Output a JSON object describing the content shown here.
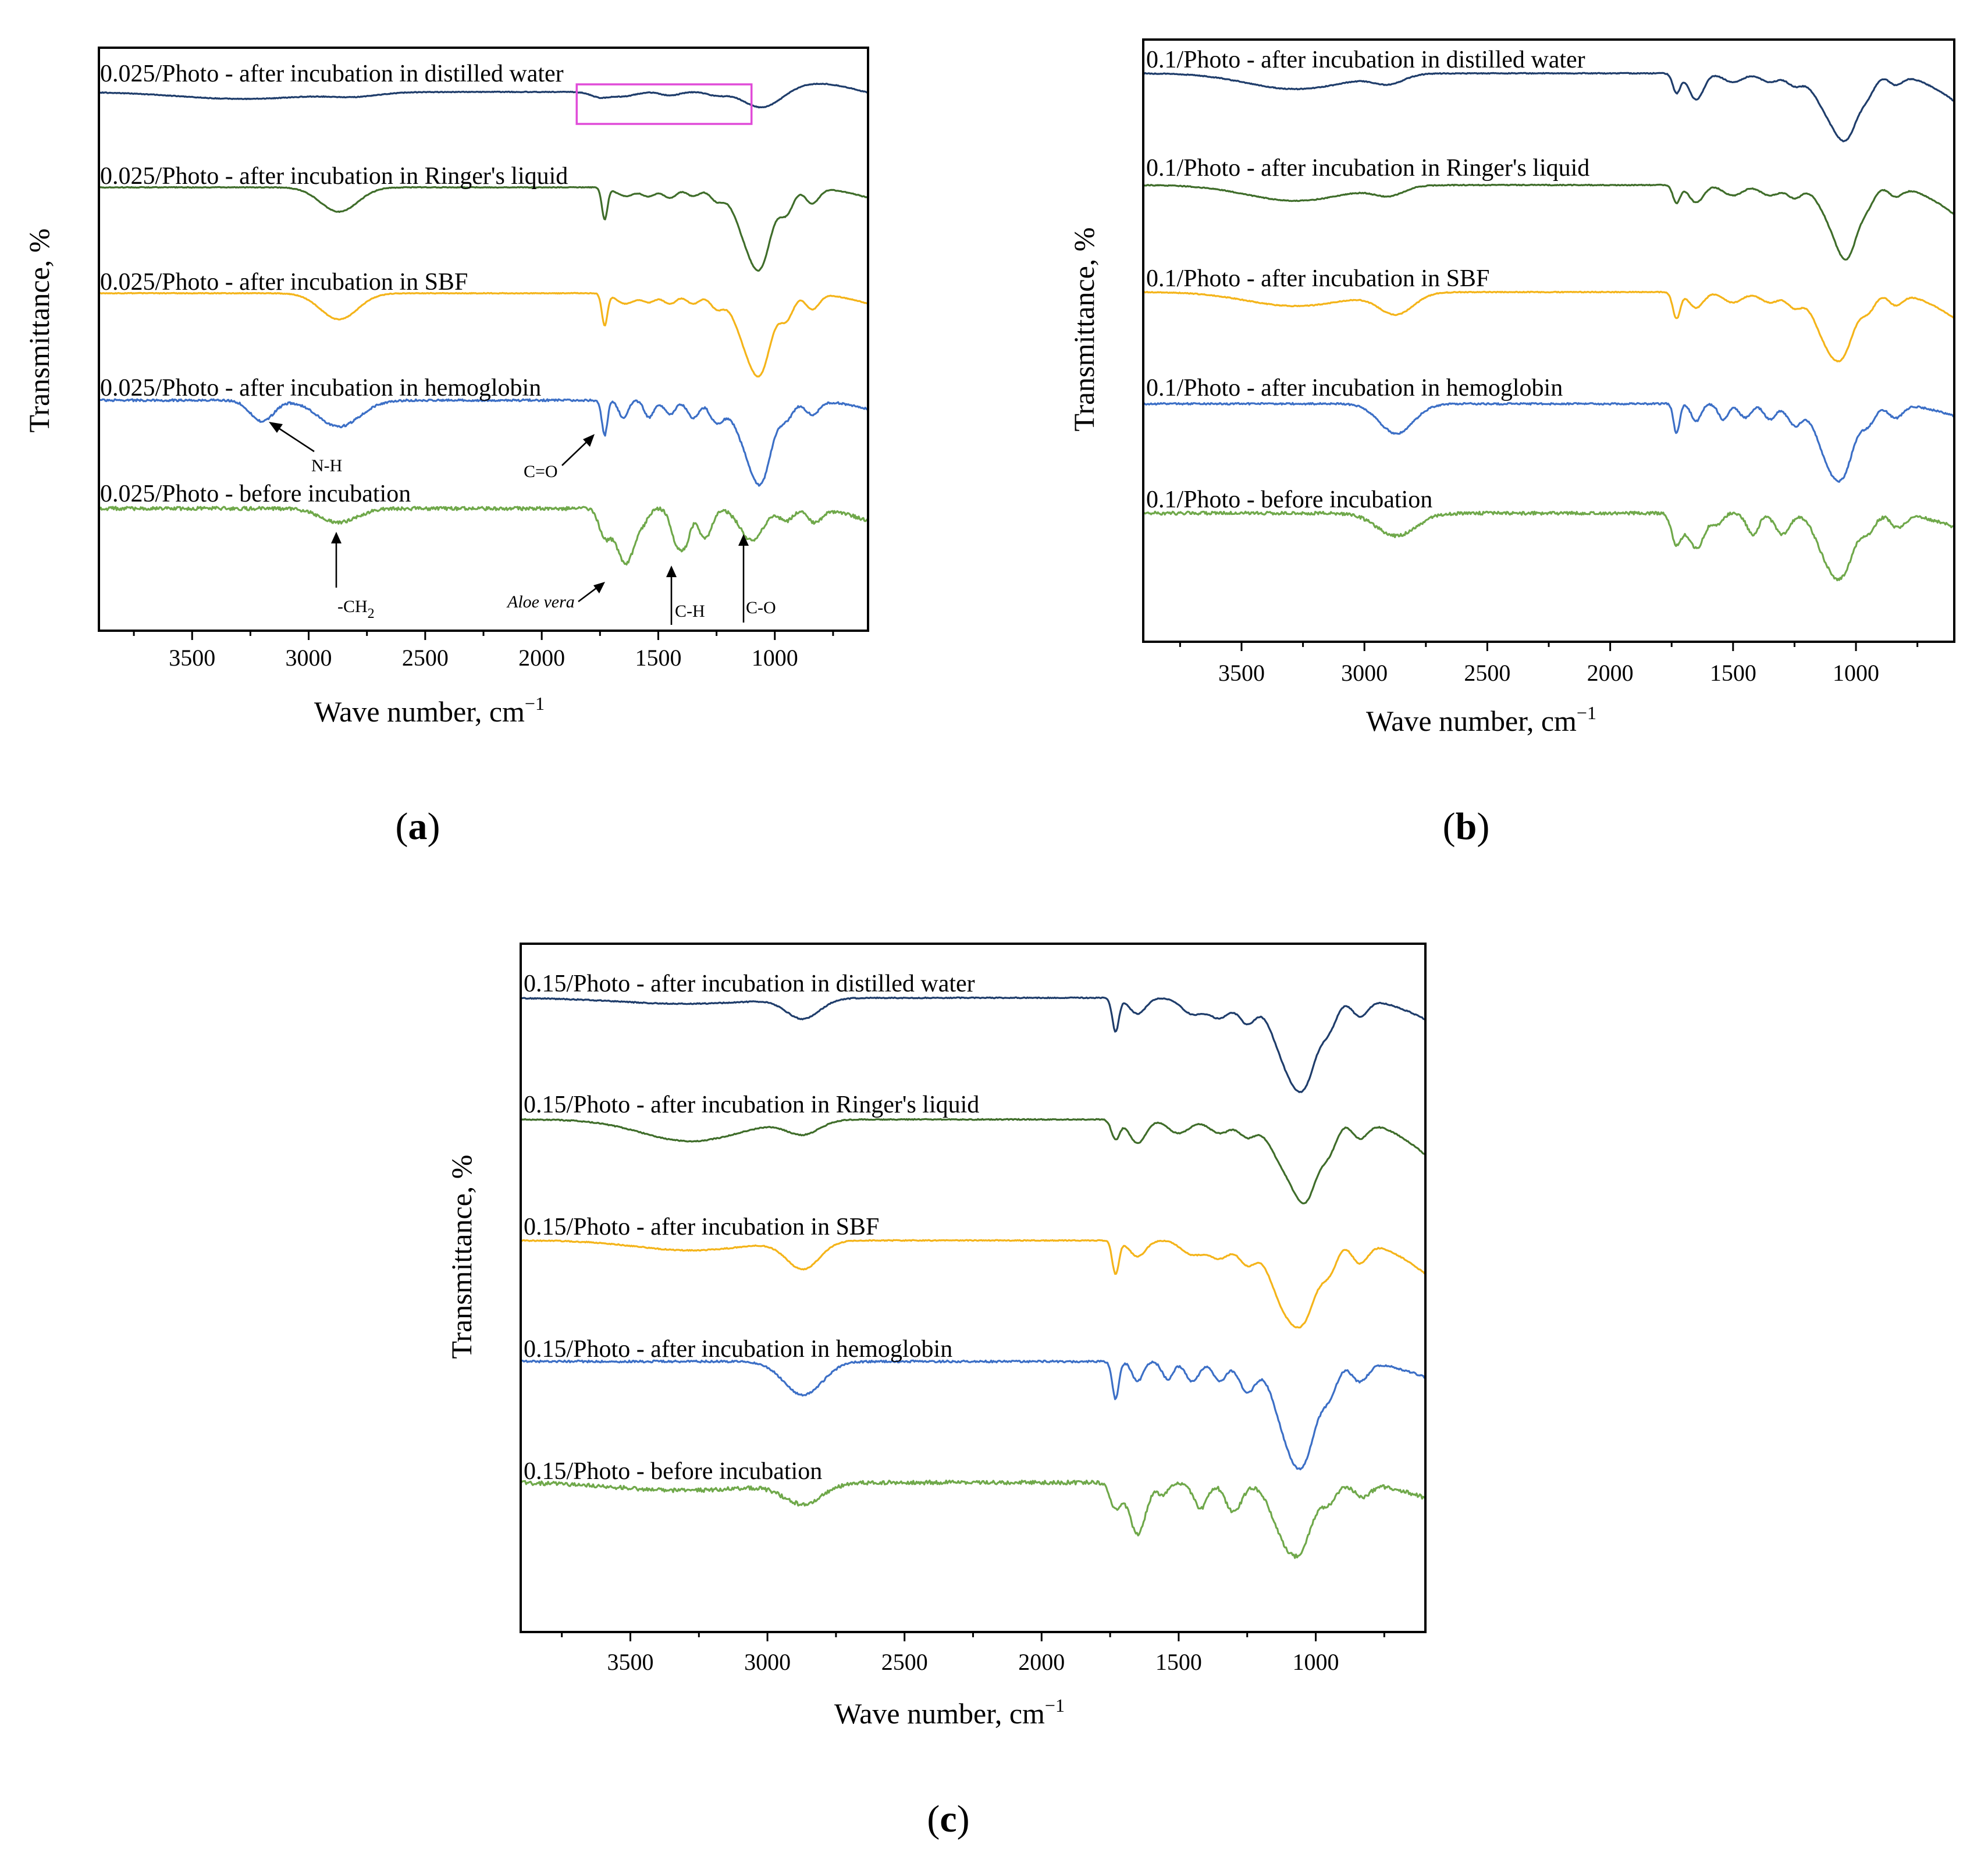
{
  "colors": {
    "distilled_water": "#1f3d6b",
    "ringer": "#3f6d2a",
    "sbf": "#f4b41a",
    "hemoglobin": "#3c6fc6",
    "before": "#6fa84a",
    "highlight": "#e04bd8"
  },
  "chart_data": [
    {
      "id": "a",
      "type": "line",
      "panel_label": {
        "open": "(",
        "letter": "a",
        "close": ")"
      },
      "xlabel": {
        "main": "Wave number, cm",
        "sup": "−1"
      },
      "ylabel": "Transmittance, %",
      "xlim": [
        3900,
        600
      ],
      "x_reversed": true,
      "ticks": [
        3500,
        3000,
        2500,
        2000,
        1500,
        1000
      ],
      "tick_labels": [
        "3500",
        "3000",
        "2500",
        "2000",
        "1500",
        "1000"
      ],
      "highlight_region_cm": [
        1850,
        1100
      ],
      "series": [
        {
          "name": "0.025/Photo - after incubation in distilled water",
          "color_key": "distilled_water",
          "baseline": 0.0,
          "features": [
            [
              3280,
              0.08,
              280
            ],
            [
              2800,
              0.04,
              100
            ],
            [
              1750,
              0.06,
              40
            ],
            [
              1650,
              0.05,
              50
            ],
            [
              1450,
              0.04,
              40
            ],
            [
              1250,
              0.04,
              40
            ],
            [
              1050,
              0.2,
              80
            ],
            [
              800,
              -0.1,
              150
            ]
          ],
          "edge_drop": 0.05,
          "noise": 0.004
        },
        {
          "name": "0.025/Photo - after incubation in Ringer's liquid",
          "color_key": "ringer",
          "baseline": 0.0,
          "features": [
            [
              2870,
              0.28,
              80
            ],
            [
              1730,
              0.36,
              12
            ],
            [
              1640,
              0.1,
              40
            ],
            [
              1540,
              0.1,
              30
            ],
            [
              1450,
              0.12,
              30
            ],
            [
              1350,
              0.1,
              30
            ],
            [
              1250,
              0.14,
              30
            ],
            [
              1100,
              0.68,
              60
            ],
            [
              1050,
              0.4,
              40
            ],
            [
              950,
              0.28,
              30
            ],
            [
              840,
              0.18,
              30
            ]
          ],
          "edge_drop": 0.12,
          "noise": 0.004
        },
        {
          "name": "0.025/Photo - after incubation in SBF",
          "color_key": "sbf",
          "baseline": 0.0,
          "features": [
            [
              2870,
              0.3,
              80
            ],
            [
              1730,
              0.36,
              12
            ],
            [
              1640,
              0.12,
              40
            ],
            [
              1540,
              0.1,
              30
            ],
            [
              1450,
              0.12,
              30
            ],
            [
              1350,
              0.12,
              30
            ],
            [
              1250,
              0.16,
              30
            ],
            [
              1100,
              0.68,
              60
            ],
            [
              1050,
              0.4,
              40
            ],
            [
              950,
              0.28,
              30
            ],
            [
              840,
              0.18,
              30
            ]
          ],
          "edge_drop": 0.12,
          "noise": 0.004
        },
        {
          "name": "0.025/Photo - after incubation in hemoglobin",
          "color_key": "hemoglobin",
          "baseline": 0.0,
          "features": [
            [
              3200,
              0.24,
              50
            ],
            [
              2870,
              0.3,
              90
            ],
            [
              1730,
              0.4,
              12
            ],
            [
              1650,
              0.2,
              20
            ],
            [
              1540,
              0.2,
              20
            ],
            [
              1450,
              0.16,
              25
            ],
            [
              1350,
              0.2,
              25
            ],
            [
              1250,
              0.24,
              30
            ],
            [
              1100,
              0.6,
              60
            ],
            [
              1050,
              0.5,
              40
            ],
            [
              950,
              0.2,
              30
            ],
            [
              840,
              0.16,
              30
            ]
          ],
          "edge_drop": 0.1,
          "noise": 0.012
        },
        {
          "name": "0.025/Photo - before incubation",
          "color_key": "before",
          "baseline": 0.0,
          "features": [
            [
              2870,
              0.16,
              80
            ],
            [
              1730,
              0.3,
              25
            ],
            [
              1640,
              0.64,
              40
            ],
            [
              1560,
              0.1,
              20
            ],
            [
              1420,
              0.4,
              25
            ],
            [
              1380,
              0.3,
              20
            ],
            [
              1300,
              0.34,
              30
            ],
            [
              1100,
              0.36,
              50
            ],
            [
              950,
              0.14,
              30
            ],
            [
              830,
              0.16,
              30
            ]
          ],
          "edge_drop": 0.14,
          "noise": 0.02
        }
      ],
      "annotations": [
        {
          "label": "N-H",
          "sub": ""
        },
        {
          "label": "C=O",
          "sub": ""
        },
        {
          "label": "-CH",
          "sub": "2"
        },
        {
          "label": "Aloe vera",
          "sub": ""
        },
        {
          "label": "C-H",
          "sub": ""
        },
        {
          "label": "C-O",
          "sub": ""
        }
      ]
    },
    {
      "id": "b",
      "type": "line",
      "panel_label": {
        "open": "(",
        "letter": "b",
        "close": ")"
      },
      "xlabel": {
        "main": "Wave number, cm",
        "sup": "−1"
      },
      "ylabel": "Transmittance, %",
      "xlim": [
        3900,
        600
      ],
      "x_reversed": true,
      "ticks": [
        3500,
        3000,
        2500,
        2000,
        1500,
        1000
      ],
      "tick_labels": [
        "3500",
        "3000",
        "2500",
        "2000",
        "1500",
        "1000"
      ],
      "series": [
        {
          "name": "0.1/Photo - after incubation in distilled water",
          "color_key": "distilled_water",
          "baseline": 0.0,
          "features": [
            [
              3280,
              0.18,
              200
            ],
            [
              2900,
              0.1,
              60
            ],
            [
              1730,
              0.22,
              15
            ],
            [
              1650,
              0.3,
              30
            ],
            [
              1500,
              0.1,
              40
            ],
            [
              1350,
              0.1,
              40
            ],
            [
              1250,
              0.12,
              30
            ],
            [
              1080,
              0.56,
              70
            ],
            [
              1030,
              0.3,
              40
            ],
            [
              950,
              0.16,
              30
            ],
            [
              840,
              0.12,
              30
            ]
          ],
          "edge_drop": 0.32,
          "noise": 0.005
        },
        {
          "name": "0.1/Photo - after incubation in Ringer's liquid",
          "color_key": "ringer",
          "baseline": 0.0,
          "features": [
            [
              3280,
              0.18,
              200
            ],
            [
              2900,
              0.1,
              60
            ],
            [
              1730,
              0.2,
              15
            ],
            [
              1650,
              0.2,
              30
            ],
            [
              1500,
              0.12,
              40
            ],
            [
              1350,
              0.12,
              40
            ],
            [
              1250,
              0.14,
              30
            ],
            [
              1080,
              0.46,
              60
            ],
            [
              1030,
              0.5,
              40
            ],
            [
              950,
              0.18,
              30
            ],
            [
              840,
              0.12,
              30
            ]
          ],
          "edge_drop": 0.34,
          "noise": 0.005
        },
        {
          "name": "0.1/Photo - after incubation in SBF",
          "color_key": "sbf",
          "baseline": 0.0,
          "features": [
            [
              3280,
              0.16,
              200
            ],
            [
              2870,
              0.24,
              70
            ],
            [
              1730,
              0.3,
              15
            ],
            [
              1650,
              0.18,
              30
            ],
            [
              1500,
              0.12,
              40
            ],
            [
              1350,
              0.12,
              40
            ],
            [
              1250,
              0.16,
              30
            ],
            [
              1100,
              0.64,
              60
            ],
            [
              1040,
              0.3,
              40
            ],
            [
              950,
              0.2,
              30
            ],
            [
              840,
              0.14,
              30
            ]
          ],
          "edge_drop": 0.3,
          "noise": 0.005
        },
        {
          "name": "0.1/Photo - after incubation in hemoglobin",
          "color_key": "hemoglobin",
          "baseline": 0.0,
          "features": [
            [
              2870,
              0.34,
              70
            ],
            [
              1730,
              0.34,
              12
            ],
            [
              1650,
              0.2,
              20
            ],
            [
              1540,
              0.18,
              20
            ],
            [
              1450,
              0.16,
              25
            ],
            [
              1350,
              0.18,
              25
            ],
            [
              1250,
              0.24,
              30
            ],
            [
              1100,
              0.68,
              55
            ],
            [
              1040,
              0.4,
              40
            ],
            [
              950,
              0.22,
              30
            ],
            [
              840,
              0.16,
              30
            ]
          ],
          "edge_drop": 0.14,
          "noise": 0.01
        },
        {
          "name": "0.1/Photo - before incubation",
          "color_key": "before",
          "baseline": 0.0,
          "features": [
            [
              2870,
              0.26,
              80
            ],
            [
              1730,
              0.34,
              20
            ],
            [
              1650,
              0.4,
              35
            ],
            [
              1560,
              0.12,
              20
            ],
            [
              1420,
              0.24,
              25
            ],
            [
              1300,
              0.24,
              30
            ],
            [
              1100,
              0.58,
              55
            ],
            [
              1040,
              0.34,
              40
            ],
            [
              950,
              0.2,
              30
            ],
            [
              830,
              0.16,
              30
            ]
          ],
          "edge_drop": 0.16,
          "noise": 0.018
        }
      ]
    },
    {
      "id": "c",
      "type": "line",
      "panel_label": {
        "open": "(",
        "letter": "c",
        "close": ")"
      },
      "xlabel": {
        "main": "Wave number, cm",
        "sup": "−1"
      },
      "ylabel": "Transmittance, %",
      "xlim": [
        3900,
        600
      ],
      "x_reversed": true,
      "ticks": [
        3500,
        3000,
        2500,
        2000,
        1500,
        1000
      ],
      "tick_labels": [
        "3500",
        "3000",
        "2500",
        "2000",
        "1500",
        "1000"
      ],
      "series": [
        {
          "name": "0.15/Photo - after incubation in distilled water",
          "color_key": "distilled_water",
          "baseline": 0.0,
          "features": [
            [
              3300,
              0.06,
              250
            ],
            [
              2870,
              0.2,
              60
            ],
            [
              1730,
              0.34,
              12
            ],
            [
              1650,
              0.16,
              30
            ],
            [
              1450,
              0.16,
              40
            ],
            [
              1350,
              0.2,
              40
            ],
            [
              1250,
              0.24,
              30
            ],
            [
              1090,
              0.72,
              60
            ],
            [
              1030,
              0.42,
              40
            ],
            [
              950,
              0.26,
              30
            ],
            [
              840,
              0.18,
              30
            ]
          ],
          "edge_drop": 0.22,
          "noise": 0.005
        },
        {
          "name": "0.15/Photo - after incubation in Ringer's liquid",
          "color_key": "ringer",
          "baseline": 0.0,
          "features": [
            [
              3280,
              0.22,
              180
            ],
            [
              2870,
              0.14,
              60
            ],
            [
              1730,
              0.2,
              15
            ],
            [
              1650,
              0.24,
              30
            ],
            [
              1500,
              0.14,
              40
            ],
            [
              1350,
              0.14,
              40
            ],
            [
              1250,
              0.16,
              30
            ],
            [
              1100,
              0.5,
              60
            ],
            [
              1030,
              0.56,
              40
            ],
            [
              950,
              0.28,
              30
            ],
            [
              840,
              0.18,
              30
            ]
          ],
          "edge_drop": 0.36,
          "noise": 0.005
        },
        {
          "name": "0.15/Photo - after incubation in SBF",
          "color_key": "sbf",
          "baseline": 0.0,
          "features": [
            [
              3280,
              0.1,
              200
            ],
            [
              2870,
              0.28,
              60
            ],
            [
              1730,
              0.34,
              12
            ],
            [
              1650,
              0.16,
              30
            ],
            [
              1450,
              0.14,
              40
            ],
            [
              1350,
              0.18,
              40
            ],
            [
              1250,
              0.22,
              30
            ],
            [
              1100,
              0.72,
              60
            ],
            [
              1030,
              0.4,
              40
            ],
            [
              950,
              0.28,
              30
            ],
            [
              840,
              0.22,
              30
            ]
          ],
          "edge_drop": 0.34,
          "noise": 0.005
        },
        {
          "name": "0.15/Photo - after incubation in hemoglobin",
          "color_key": "hemoglobin",
          "baseline": 0.0,
          "features": [
            [
              2870,
              0.34,
              70
            ],
            [
              1730,
              0.38,
              12
            ],
            [
              1650,
              0.2,
              20
            ],
            [
              1540,
              0.18,
              20
            ],
            [
              1450,
              0.2,
              25
            ],
            [
              1350,
              0.2,
              25
            ],
            [
              1250,
              0.3,
              30
            ],
            [
              1090,
              0.82,
              55
            ],
            [
              1030,
              0.5,
              40
            ],
            [
              950,
              0.3,
              30
            ],
            [
              840,
              0.2,
              30
            ]
          ],
          "edge_drop": 0.16,
          "noise": 0.01
        },
        {
          "name": "0.15/Photo - before incubation",
          "color_key": "before",
          "baseline": 0.0,
          "features": [
            [
              3300,
              0.08,
              250
            ],
            [
              2870,
              0.2,
              70
            ],
            [
              1730,
              0.26,
              20
            ],
            [
              1650,
              0.52,
              30
            ],
            [
              1560,
              0.12,
              20
            ],
            [
              1420,
              0.26,
              25
            ],
            [
              1300,
              0.3,
              30
            ],
            [
              1100,
              0.6,
              55
            ],
            [
              1040,
              0.3,
              40
            ],
            [
              950,
              0.18,
              30
            ],
            [
              830,
              0.14,
              30
            ]
          ],
          "edge_drop": 0.16,
          "noise": 0.02
        }
      ]
    }
  ]
}
